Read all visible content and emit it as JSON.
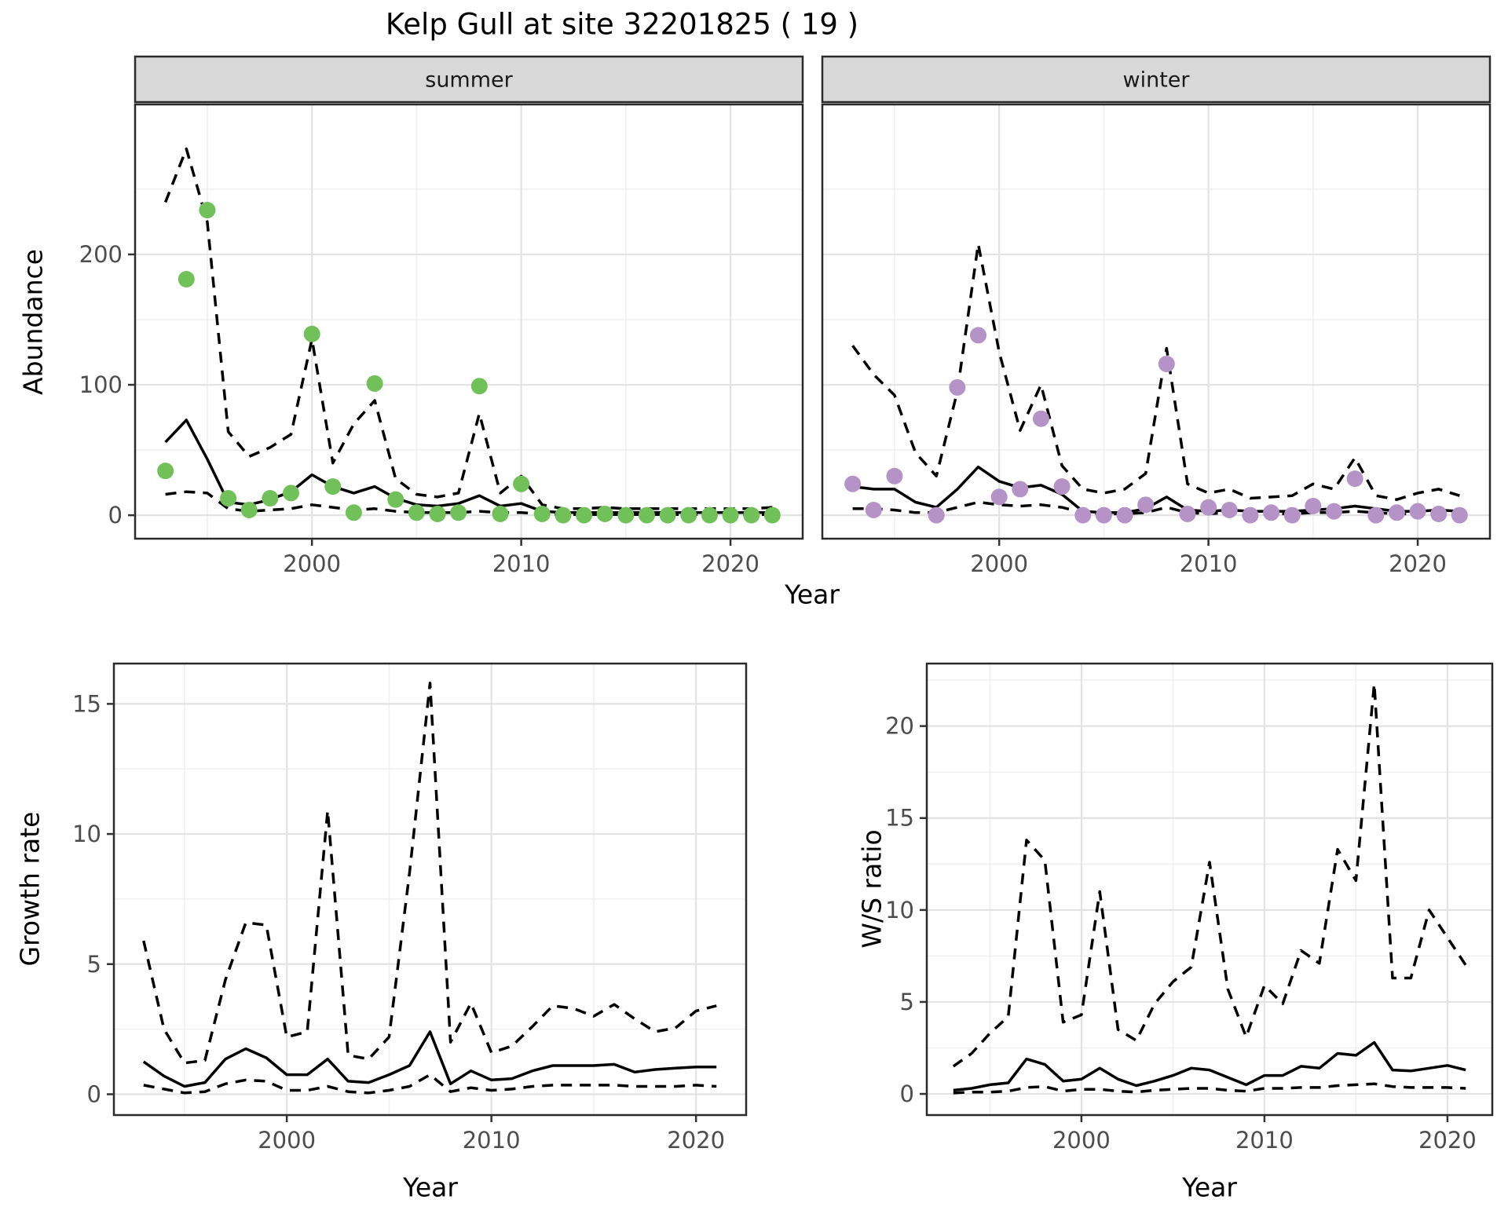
{
  "title": "Kelp Gull at site 32201825 ( 19 )",
  "facets": {
    "summer": "summer",
    "winter": "winter"
  },
  "labels": {
    "x": "Year",
    "abundance": "Abundance",
    "growth": "Growth rate",
    "ws": "W/S ratio"
  },
  "colors": {
    "summer_point": "#72C05A",
    "winter_point": "#B593C6",
    "line": "#000000",
    "grid_major": "#E3E3E3",
    "grid_minor": "#F0F0F0",
    "strip_bg": "#D8D8D8",
    "panel_border": "#2A2A2A",
    "tick_mark": "#333333",
    "tick_label": "#4D4D4D",
    "background": "#FFFFFF"
  },
  "chart_data": [
    {
      "id": "abundance_summer",
      "type": "line",
      "facet": "summer",
      "ylabel": "Abundance",
      "xlabel": "Year",
      "x": [
        1993,
        1994,
        1995,
        1996,
        1997,
        1998,
        1999,
        2000,
        2001,
        2002,
        2003,
        2004,
        2005,
        2006,
        2007,
        2008,
        2009,
        2010,
        2011,
        2012,
        2013,
        2014,
        2015,
        2016,
        2017,
        2018,
        2019,
        2020,
        2021,
        2022
      ],
      "xticks": [
        2000,
        2010,
        2020
      ],
      "yticks": [
        0,
        100,
        200
      ],
      "xlim": [
        1991.55,
        2023.45
      ],
      "ylim": [
        -18,
        315
      ],
      "grid": true,
      "legend": "none",
      "series": [
        {
          "name": "upper_ci",
          "style": "dashed",
          "values": [
            240,
            281,
            225,
            64,
            45,
            52,
            62,
            135,
            40,
            70,
            88,
            28,
            16,
            14,
            17,
            78,
            17,
            30,
            8,
            5,
            5,
            6,
            5,
            5,
            5,
            5,
            5,
            5,
            5,
            6
          ]
        },
        {
          "name": "lower_ci",
          "style": "dashed",
          "values": [
            16,
            18,
            17,
            5,
            3,
            4,
            5,
            8,
            6,
            4,
            5,
            3,
            2,
            2,
            2,
            3,
            2,
            2,
            1,
            0.5,
            0.5,
            0.5,
            0.5,
            0.5,
            0.5,
            0.5,
            0.5,
            0.5,
            0.5,
            0.5
          ]
        },
        {
          "name": "median",
          "style": "solid",
          "values": [
            56,
            73,
            43,
            10,
            8,
            12,
            18,
            31,
            22,
            17,
            22,
            13,
            8,
            7,
            9,
            15,
            7,
            9,
            3,
            2,
            2,
            2,
            2,
            2,
            2,
            2,
            2,
            2,
            2,
            2
          ]
        },
        {
          "name": "observed",
          "style": "points",
          "color": "#72C05A",
          "values": [
            34,
            181,
            234,
            13,
            4,
            13,
            17,
            139,
            22,
            2,
            101,
            12,
            2,
            1,
            2,
            99,
            1,
            24,
            1,
            0,
            0,
            1,
            0,
            0,
            0,
            0,
            0,
            0,
            0,
            0
          ]
        }
      ]
    },
    {
      "id": "abundance_winter",
      "type": "line",
      "facet": "winter",
      "ylabel": "Abundance",
      "xlabel": "Year",
      "x": [
        1993,
        1994,
        1995,
        1996,
        1997,
        1998,
        1999,
        2000,
        2001,
        2002,
        2003,
        2004,
        2005,
        2006,
        2007,
        2008,
        2009,
        2010,
        2011,
        2012,
        2013,
        2014,
        2015,
        2016,
        2017,
        2018,
        2019,
        2020,
        2021,
        2022
      ],
      "xticks": [
        2000,
        2010,
        2020
      ],
      "yticks": [
        0,
        100,
        200
      ],
      "xlim": [
        1991.55,
        2023.45
      ],
      "ylim": [
        -18,
        315
      ],
      "grid": true,
      "legend": "none",
      "series": [
        {
          "name": "upper_ci",
          "style": "dashed",
          "values": [
            130,
            108,
            92,
            48,
            30,
            95,
            208,
            125,
            65,
            100,
            38,
            20,
            17,
            20,
            32,
            128,
            24,
            17,
            20,
            13,
            14,
            15,
            24,
            20,
            44,
            15,
            12,
            17,
            20,
            15
          ]
        },
        {
          "name": "lower_ci",
          "style": "dashed",
          "values": [
            5,
            5,
            4,
            2,
            2,
            6,
            10,
            8,
            7,
            8,
            6,
            2,
            1,
            1,
            2,
            6,
            2,
            1,
            2,
            1,
            1,
            1,
            2,
            2,
            3,
            2,
            1,
            1,
            1,
            1
          ]
        },
        {
          "name": "median",
          "style": "solid",
          "values": [
            22,
            20,
            20,
            10,
            6,
            20,
            37,
            26,
            21,
            23,
            16,
            3,
            2,
            2,
            5,
            14,
            4,
            3,
            4,
            3,
            3,
            3,
            4,
            5,
            7,
            5,
            3,
            3,
            4,
            3
          ]
        },
        {
          "name": "observed",
          "style": "points",
          "color": "#B593C6",
          "values": [
            24,
            4,
            30,
            null,
            0,
            98,
            138,
            14,
            20,
            74,
            22,
            0,
            0,
            0,
            8,
            116,
            1,
            6,
            4,
            0,
            2,
            0,
            7,
            3,
            28,
            0,
            2,
            3,
            1,
            0
          ]
        }
      ]
    },
    {
      "id": "growth_rate",
      "type": "line",
      "ylabel": "Growth rate",
      "xlabel": "Year",
      "x": [
        1993,
        1994,
        1995,
        1996,
        1997,
        1998,
        1999,
        2000,
        2001,
        2002,
        2003,
        2004,
        2005,
        2006,
        2007,
        2008,
        2009,
        2010,
        2011,
        2012,
        2013,
        2014,
        2015,
        2016,
        2017,
        2018,
        2019,
        2020,
        2021
      ],
      "xticks": [
        2000,
        2010,
        2020
      ],
      "yticks": [
        0,
        5,
        10,
        15
      ],
      "xlim": [
        1991.55,
        2022.45
      ],
      "ylim": [
        -0.8,
        16.55
      ],
      "grid": true,
      "legend": "none",
      "series": [
        {
          "name": "upper_ci",
          "style": "dashed",
          "values": [
            5.9,
            2.5,
            1.2,
            1.3,
            4.4,
            6.6,
            6.5,
            2.2,
            2.4,
            10.9,
            1.5,
            1.35,
            2.2,
            8.5,
            15.8,
            2.0,
            3.5,
            1.6,
            1.85,
            2.6,
            3.4,
            3.3,
            3.0,
            3.45,
            2.9,
            2.4,
            2.55,
            3.2,
            3.4
          ]
        },
        {
          "name": "lower_ci",
          "style": "dashed",
          "values": [
            0.35,
            0.2,
            0.05,
            0.1,
            0.4,
            0.55,
            0.5,
            0.15,
            0.15,
            0.3,
            0.1,
            0.05,
            0.15,
            0.3,
            0.75,
            0.1,
            0.25,
            0.15,
            0.2,
            0.3,
            0.35,
            0.35,
            0.35,
            0.35,
            0.3,
            0.3,
            0.3,
            0.35,
            0.3
          ]
        },
        {
          "name": "median",
          "style": "solid",
          "values": [
            1.25,
            0.7,
            0.3,
            0.45,
            1.35,
            1.75,
            1.4,
            0.75,
            0.75,
            1.35,
            0.5,
            0.45,
            0.75,
            1.1,
            2.4,
            0.4,
            0.9,
            0.55,
            0.6,
            0.9,
            1.1,
            1.1,
            1.1,
            1.15,
            0.85,
            0.95,
            1.0,
            1.05,
            1.05
          ]
        }
      ]
    },
    {
      "id": "ws_ratio",
      "type": "line",
      "ylabel": "W/S ratio",
      "xlabel": "Year",
      "x": [
        1993,
        1994,
        1995,
        1996,
        1997,
        1998,
        1999,
        2000,
        2001,
        2002,
        2003,
        2004,
        2005,
        2006,
        2007,
        2008,
        2009,
        2010,
        2011,
        2012,
        2013,
        2014,
        2015,
        2016,
        2017,
        2018,
        2019,
        2020,
        2021
      ],
      "xticks": [
        2000,
        2010,
        2020
      ],
      "yticks": [
        0,
        5,
        10,
        15,
        20
      ],
      "xlim": [
        1991.55,
        2022.45
      ],
      "ylim": [
        -1.15,
        23.4
      ],
      "grid": true,
      "legend": "none",
      "series": [
        {
          "name": "upper_ci",
          "style": "dashed",
          "values": [
            1.5,
            2.2,
            3.3,
            4.2,
            13.8,
            12.7,
            3.9,
            4.3,
            11.0,
            3.5,
            2.9,
            4.9,
            6.1,
            6.9,
            12.6,
            5.7,
            3.1,
            5.9,
            4.9,
            7.8,
            7.1,
            13.3,
            11.6,
            22.3,
            6.3,
            6.3,
            10.0,
            8.5,
            7.0
          ]
        },
        {
          "name": "lower_ci",
          "style": "dashed",
          "values": [
            0.05,
            0.1,
            0.1,
            0.15,
            0.35,
            0.4,
            0.15,
            0.25,
            0.25,
            0.15,
            0.1,
            0.2,
            0.25,
            0.3,
            0.3,
            0.2,
            0.15,
            0.3,
            0.3,
            0.35,
            0.35,
            0.45,
            0.5,
            0.55,
            0.4,
            0.35,
            0.35,
            0.35,
            0.3
          ]
        },
        {
          "name": "median",
          "style": "solid",
          "values": [
            0.2,
            0.3,
            0.5,
            0.6,
            1.9,
            1.6,
            0.7,
            0.8,
            1.4,
            0.8,
            0.45,
            0.7,
            1.0,
            1.4,
            1.3,
            0.9,
            0.5,
            1.0,
            1.0,
            1.5,
            1.4,
            2.2,
            2.1,
            2.8,
            1.3,
            1.25,
            1.4,
            1.55,
            1.3
          ]
        }
      ]
    }
  ]
}
